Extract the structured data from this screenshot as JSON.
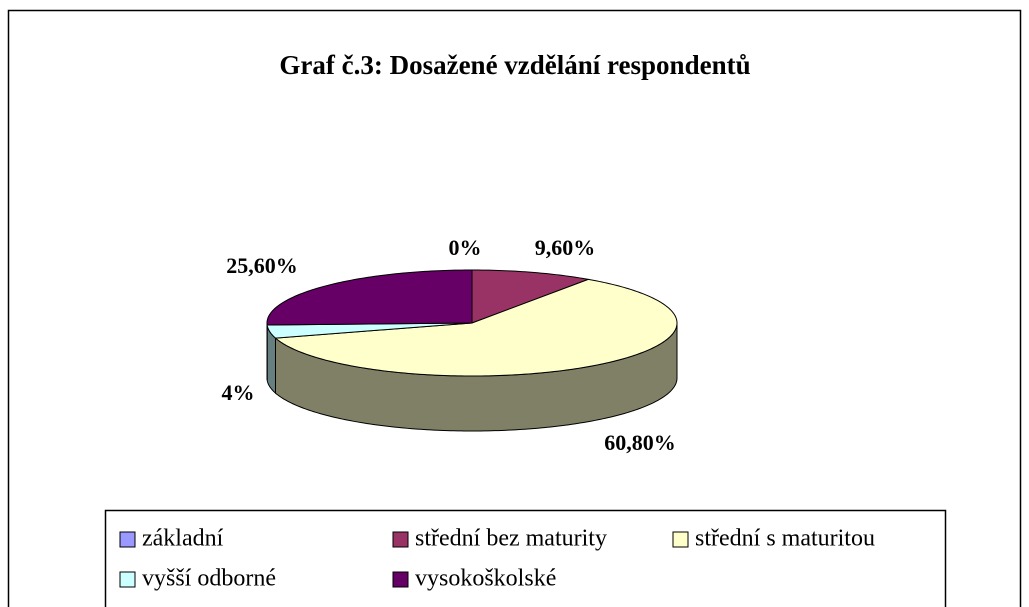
{
  "chart_data": {
    "type": "pie",
    "title": "Graf č.3: Dosažené vzdělání respondentů",
    "categories": [
      "základní",
      "střední bez maturity",
      "střední s maturitou",
      "vyšší odborné",
      "vysokoškolské"
    ],
    "values": [
      0,
      9.6,
      60.8,
      4,
      25.6
    ],
    "value_labels": [
      "0%",
      "9,60%",
      "60,80%",
      "4%",
      "25,60%"
    ],
    "colors": [
      "#9999ff",
      "#993366",
      "#ffffcc",
      "#ccffff",
      "#660066"
    ],
    "legend": "bottom"
  }
}
